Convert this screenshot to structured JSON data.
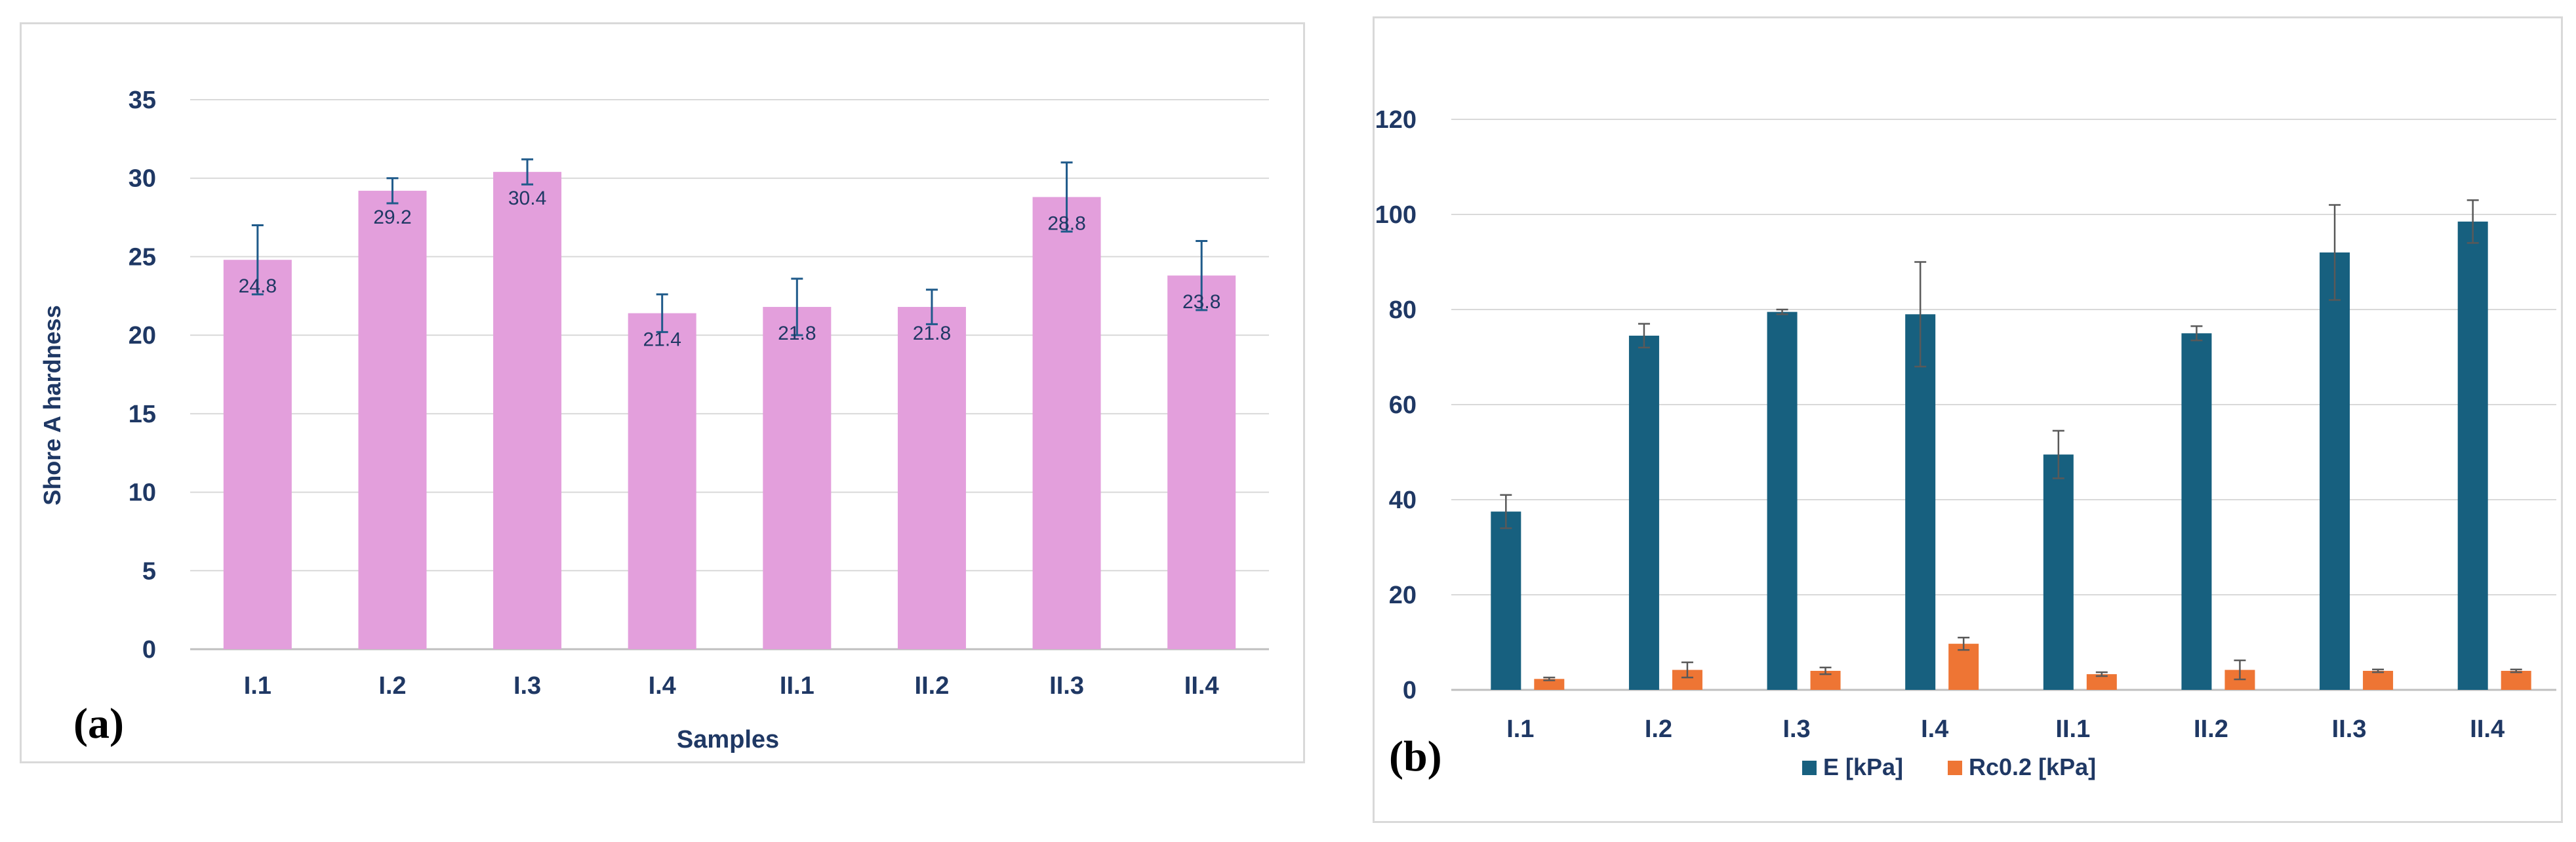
{
  "chart_data": [
    {
      "id": "a",
      "type": "bar",
      "panel_label": "(a)",
      "title": "",
      "xlabel": "Samples",
      "ylabel": "Shore A hardness",
      "categories": [
        "I.1",
        "I.2",
        "I.3",
        "I.4",
        "II.1",
        "II.2",
        "II.3",
        "II.4"
      ],
      "values": [
        24.8,
        29.2,
        30.4,
        21.4,
        21.8,
        21.8,
        28.8,
        23.8
      ],
      "data_labels": [
        "24.8",
        "29.2",
        "30.4",
        "21.4",
        "21.8",
        "21.8",
        "28.8",
        "23.8"
      ],
      "error": [
        2.2,
        0.8,
        0.8,
        1.2,
        1.8,
        1.1,
        2.2,
        2.2
      ],
      "ylim": [
        0,
        35
      ],
      "yticks": [
        0,
        5,
        10,
        15,
        20,
        25,
        30,
        35
      ],
      "grid": true,
      "colors": {
        "bar": "#e39fdc",
        "error": "#1f5a8a",
        "grid": "#d9d9d9",
        "axis": "#bfbfbf"
      }
    },
    {
      "id": "b",
      "type": "bar",
      "panel_label": "(b)",
      "title": "",
      "xlabel": "",
      "ylabel": "",
      "categories": [
        "I.1",
        "I.2",
        "I.3",
        "I.4",
        "II.1",
        "II.2",
        "II.3",
        "II.4"
      ],
      "series": [
        {
          "name": "E [kPa]",
          "color": "#17607f",
          "values": [
            37.5,
            74.5,
            79.5,
            79,
            49.5,
            75,
            92,
            98.5
          ],
          "error": [
            3.5,
            2.5,
            0.5,
            11,
            5,
            1.5,
            10,
            4.5
          ]
        },
        {
          "name": "Rc0.2 [kPa]",
          "color": "#ee7534",
          "values": [
            2.3,
            4.2,
            4,
            9.7,
            3.3,
            4.2,
            4,
            4
          ],
          "error": [
            0.3,
            1.6,
            0.7,
            1.3,
            0.4,
            2,
            0.3,
            0.3
          ]
        }
      ],
      "ylim": [
        0,
        120
      ],
      "yticks": [
        0,
        20,
        40,
        60,
        80,
        100,
        120
      ],
      "grid": true,
      "legend": "bottom",
      "colors": {
        "error": "#595959",
        "grid": "#d9d9d9",
        "axis": "#bfbfbf"
      }
    }
  ]
}
